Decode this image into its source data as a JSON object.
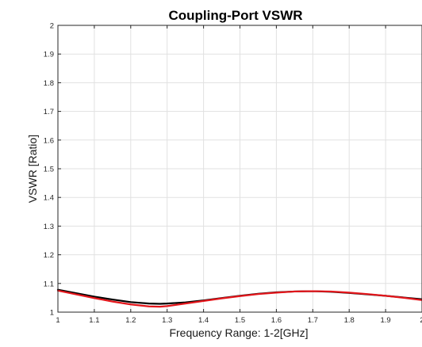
{
  "chart_data": {
    "type": "line",
    "title": "Coupling-Port VSWR",
    "xlabel": "Frequency Range: 1-2[GHz]",
    "ylabel": "VSWR [Ratio]",
    "xlim": [
      1,
      2
    ],
    "ylim": [
      1,
      2
    ],
    "xticks": [
      "1",
      "1.1",
      "1.2",
      "1.3",
      "1.4",
      "1.5",
      "1.6",
      "1.7",
      "1.8",
      "1.9",
      "2"
    ],
    "yticks": [
      "1",
      "1.1",
      "1.2",
      "1.3",
      "1.4",
      "1.5",
      "1.6",
      "1.7",
      "1.8",
      "1.9",
      "2"
    ],
    "grid": true,
    "legend": "none",
    "series": [
      {
        "color": "#000000",
        "x": [
          1.0,
          1.05,
          1.1,
          1.15,
          1.2,
          1.25,
          1.28,
          1.3,
          1.35,
          1.4,
          1.45,
          1.5,
          1.55,
          1.6,
          1.65,
          1.7,
          1.75,
          1.8,
          1.85,
          1.9,
          1.95,
          2.0
        ],
        "y": [
          1.078,
          1.066,
          1.054,
          1.044,
          1.035,
          1.03,
          1.029,
          1.03,
          1.034,
          1.041,
          1.049,
          1.057,
          1.064,
          1.069,
          1.072,
          1.073,
          1.071,
          1.067,
          1.062,
          1.057,
          1.051,
          1.045
        ]
      },
      {
        "color": "#e3161b",
        "x": [
          1.0,
          1.05,
          1.1,
          1.15,
          1.2,
          1.25,
          1.28,
          1.3,
          1.35,
          1.4,
          1.45,
          1.5,
          1.55,
          1.6,
          1.65,
          1.7,
          1.75,
          1.8,
          1.85,
          1.9,
          1.95,
          2.0
        ],
        "y": [
          1.075,
          1.062,
          1.049,
          1.037,
          1.027,
          1.02,
          1.019,
          1.021,
          1.03,
          1.039,
          1.048,
          1.056,
          1.063,
          1.068,
          1.072,
          1.073,
          1.072,
          1.068,
          1.063,
          1.057,
          1.05,
          1.042
        ]
      }
    ]
  }
}
